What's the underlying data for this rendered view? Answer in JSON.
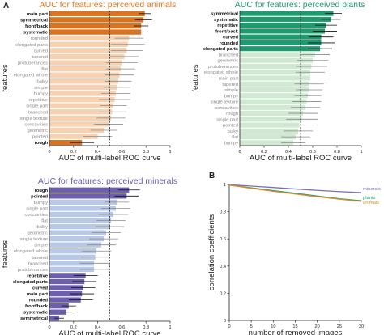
{
  "panel_letters": [
    "A",
    "B"
  ],
  "chart_data": [
    {
      "type": "bar",
      "orientation": "horizontal",
      "title": "AUC for features: perceived animals",
      "xlabel": "AUC of multi-label ROC curve",
      "ylabel": "features",
      "xlim": [
        0,
        1
      ],
      "xticks": [
        0,
        0.2,
        0.4,
        0.6,
        0.8,
        1
      ],
      "chance_line": 0.5,
      "color_significant": "#d9731f",
      "color_nonsignificant": "#f6d2b3",
      "categories": [
        "main part",
        "symmetrical",
        "front/back",
        "systematic",
        "rounded",
        "elongated parts",
        "curved",
        "tapered",
        "protuberances",
        "flat",
        "elongated whole",
        "bulky",
        "simple",
        "bumpy",
        "repetitive",
        "single part",
        "branched",
        "single texture",
        "concavities",
        "geometric",
        "pointed",
        "rough"
      ],
      "values": [
        0.79,
        0.78,
        0.76,
        0.76,
        0.66,
        0.65,
        0.64,
        0.62,
        0.6,
        0.59,
        0.58,
        0.57,
        0.56,
        0.55,
        0.54,
        0.53,
        0.52,
        0.51,
        0.49,
        0.45,
        0.4,
        0.27
      ],
      "errors": [
        0.05,
        0.07,
        0.06,
        0.06,
        0.12,
        0.14,
        0.13,
        0.12,
        0.13,
        0.12,
        0.12,
        0.11,
        0.11,
        0.12,
        0.13,
        0.11,
        0.12,
        0.12,
        0.12,
        0.11,
        0.12,
        0.1
      ],
      "significant": [
        true,
        true,
        true,
        true,
        false,
        false,
        false,
        false,
        false,
        false,
        false,
        false,
        false,
        false,
        false,
        false,
        false,
        false,
        false,
        false,
        false,
        true
      ]
    },
    {
      "type": "bar",
      "orientation": "horizontal",
      "title": "AUC for features: perceived plants",
      "xlabel": "AUC of multi-label ROC curve",
      "ylabel": "features",
      "xlim": [
        0,
        1
      ],
      "xticks": [
        0,
        0.2,
        0.4,
        0.6,
        0.8,
        1
      ],
      "chance_line": 0.5,
      "color_significant": "#1f9a6f",
      "color_nonsignificant": "#cfe9d2",
      "categories": [
        "symmetrical",
        "systematic",
        "repetitive",
        "front/back",
        "curved",
        "rounded",
        "elongated parts",
        "branched",
        "geometric",
        "protuberances",
        "elongated whole",
        "main part",
        "tapered",
        "simple",
        "bumpy",
        "single texture",
        "concavities",
        "rough",
        "single part",
        "pointed",
        "bulky",
        "flat",
        "bumpy"
      ],
      "values": [
        0.77,
        0.75,
        0.71,
        0.7,
        0.67,
        0.67,
        0.66,
        0.62,
        0.6,
        0.59,
        0.58,
        0.58,
        0.57,
        0.57,
        0.56,
        0.55,
        0.54,
        0.52,
        0.51,
        0.49,
        0.48,
        0.46,
        0.44
      ],
      "errors": [
        0.07,
        0.08,
        0.09,
        0.1,
        0.1,
        0.11,
        0.1,
        0.12,
        0.13,
        0.13,
        0.12,
        0.13,
        0.12,
        0.11,
        0.11,
        0.12,
        0.12,
        0.12,
        0.13,
        0.12,
        0.12,
        0.12,
        0.1
      ],
      "significant": [
        true,
        true,
        true,
        true,
        true,
        true,
        true,
        false,
        false,
        false,
        false,
        false,
        false,
        false,
        false,
        false,
        false,
        false,
        false,
        false,
        false,
        false,
        false
      ]
    },
    {
      "type": "bar",
      "orientation": "horizontal",
      "title": "AUC for features: perceived minerals",
      "xlabel": "AUC of multi-label ROC curve",
      "ylabel": "features",
      "xlim": [
        0,
        1
      ],
      "xticks": [
        0,
        0.2,
        0.4,
        0.6,
        0.8,
        1
      ],
      "chance_line": 0.5,
      "color_significant": "#6d5fae",
      "color_nonsignificant": "#b9c8e6",
      "categories": [
        "rough",
        "pointed",
        "bumpy",
        "single part",
        "concavities",
        "flat",
        "bulky",
        "geometric",
        "single texture",
        "simple",
        "elongated whole",
        "tapered",
        "branched",
        "protuberances",
        "repetitive",
        "elongated parts",
        "curved",
        "main part",
        "rounded",
        "front/back",
        "systematic",
        "symmetrical"
      ],
      "values": [
        0.66,
        0.64,
        0.56,
        0.55,
        0.53,
        0.51,
        0.5,
        0.47,
        0.45,
        0.43,
        0.39,
        0.38,
        0.37,
        0.37,
        0.3,
        0.29,
        0.28,
        0.27,
        0.26,
        0.16,
        0.14,
        0.08
      ],
      "errors": [
        0.09,
        0.1,
        0.1,
        0.12,
        0.12,
        0.12,
        0.12,
        0.12,
        0.12,
        0.12,
        0.12,
        0.12,
        0.12,
        0.12,
        0.1,
        0.1,
        0.1,
        0.1,
        0.1,
        0.06,
        0.05,
        0.04
      ],
      "significant": [
        true,
        true,
        false,
        false,
        false,
        false,
        false,
        false,
        false,
        false,
        false,
        false,
        false,
        false,
        true,
        true,
        true,
        true,
        true,
        true,
        true,
        true
      ]
    },
    {
      "type": "line",
      "title": "",
      "xlabel": "number of removed images",
      "ylabel": "correlation coefficients",
      "xlim": [
        0,
        30
      ],
      "ylim": [
        0,
        1
      ],
      "xticks": [
        0,
        5,
        10,
        15,
        20,
        25,
        30
      ],
      "yticks": [
        0,
        0.2,
        0.4,
        0.6,
        0.8,
        1
      ],
      "x": [
        0,
        5,
        10,
        15,
        20,
        25,
        30
      ],
      "series": [
        {
          "name": "minerals",
          "color": "#7b6fb8",
          "values": [
            0.998,
            0.988,
            0.978,
            0.967,
            0.957,
            0.948,
            0.94
          ]
        },
        {
          "name": "plants",
          "color": "#1fa07a",
          "values": [
            0.996,
            0.975,
            0.955,
            0.935,
            0.915,
            0.895,
            0.88
          ]
        },
        {
          "name": "animals",
          "color": "#e08a2a",
          "values": [
            0.996,
            0.972,
            0.95,
            0.93,
            0.91,
            0.892,
            0.875
          ]
        }
      ]
    }
  ]
}
